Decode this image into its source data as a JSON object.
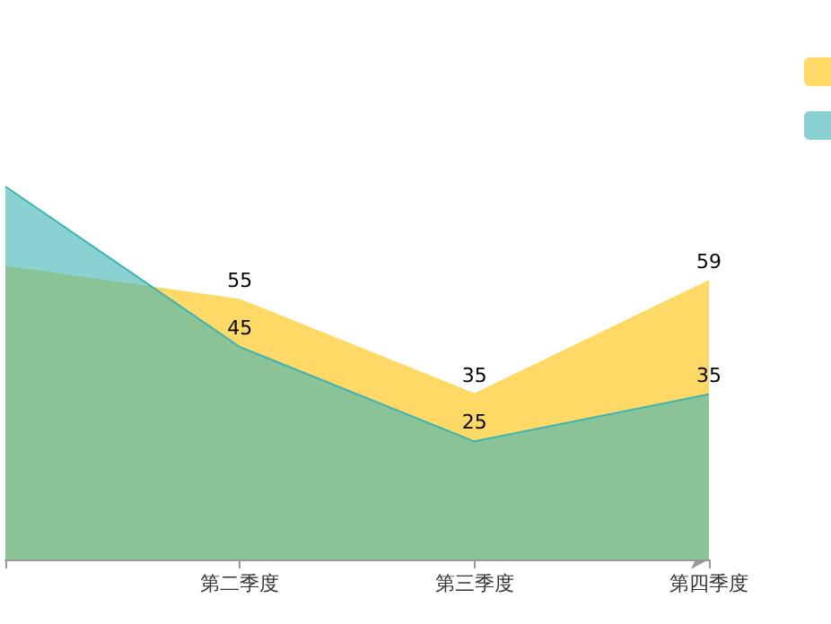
{
  "chart_data": {
    "type": "area",
    "categories": [
      null,
      "第二季度",
      "第三季度",
      "第四季度"
    ],
    "series": [
      {
        "color": "#ffd966",
        "values": [
          62,
          55,
          35,
          59
        ],
        "value_labels": [
          null,
          "55",
          "35",
          "59"
        ]
      },
      {
        "color": "#3cb4b4",
        "values": [
          79,
          45,
          25,
          35
        ],
        "value_labels": [
          null,
          "45",
          "25",
          "35"
        ]
      }
    ],
    "grid": false,
    "marker": "none"
  }
}
